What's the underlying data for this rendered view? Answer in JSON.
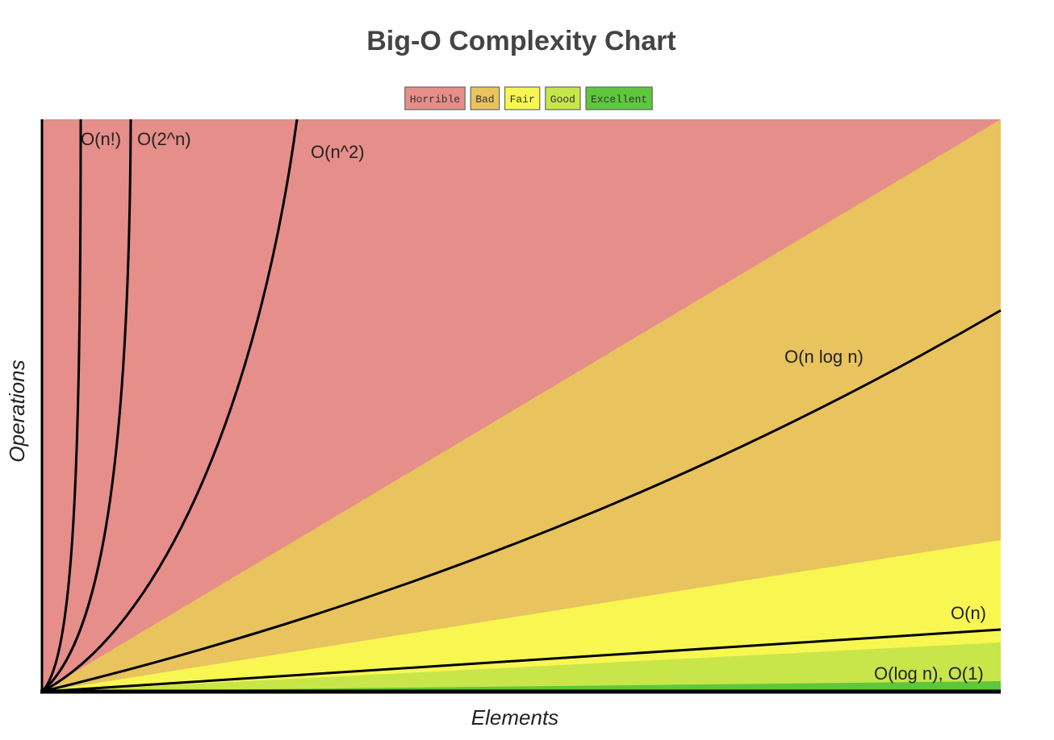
{
  "chart_data": {
    "type": "line",
    "title": "Big-O Complexity Chart",
    "x_label": "Elements",
    "y_label": "Operations",
    "legend": [
      {
        "name": "Horrible",
        "color": "#e58e8a"
      },
      {
        "name": "Bad",
        "color": "#e8c35e"
      },
      {
        "name": "Fair",
        "color": "#f8f752"
      },
      {
        "name": "Good",
        "color": "#c8e64a"
      },
      {
        "name": "Excellent",
        "color": "#5ec83c"
      }
    ],
    "curves": [
      {
        "label": "O(n!)"
      },
      {
        "label": "O(2^n)"
      },
      {
        "label": "O(n^2)"
      },
      {
        "label": "O(n log n)"
      },
      {
        "label": "O(n)"
      },
      {
        "label": "O(log n), O(1)"
      }
    ]
  }
}
